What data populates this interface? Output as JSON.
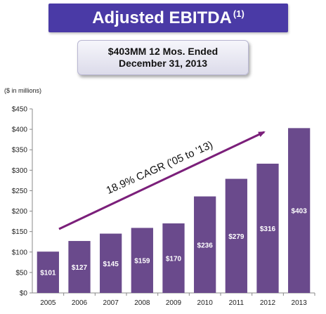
{
  "header": {
    "title": "Adjusted EBITDA",
    "title_footnote": "(1)",
    "callout_line1": "$403MM 12 Mos. Ended",
    "callout_line2": "December 31, 2013"
  },
  "colors": {
    "title_bg": "#4a3aa6",
    "bar": "#6a4a8c",
    "arrow": "#7b1f7a"
  },
  "chart_data": {
    "type": "bar",
    "units_label": "($ in millions)",
    "categories": [
      "2005",
      "2006",
      "2007",
      "2008",
      "2009",
      "2010",
      "2011",
      "2012",
      "2013"
    ],
    "values": [
      101,
      127,
      145,
      159,
      170,
      236,
      279,
      316,
      403
    ],
    "data_labels": [
      "$101",
      "$127",
      "$145",
      "$159",
      "$170",
      "$236",
      "$279",
      "$316",
      "$403"
    ],
    "ylim": [
      0,
      450
    ],
    "y_ticks": [
      0,
      50,
      100,
      150,
      200,
      250,
      300,
      350,
      400,
      450
    ],
    "y_tick_labels": [
      "$0",
      "$50",
      "$100",
      "$150",
      "$200",
      "$250",
      "$300",
      "$350",
      "$400",
      "$450"
    ],
    "annotation": "18.9% CAGR ('05 to '13)",
    "grid": false
  }
}
